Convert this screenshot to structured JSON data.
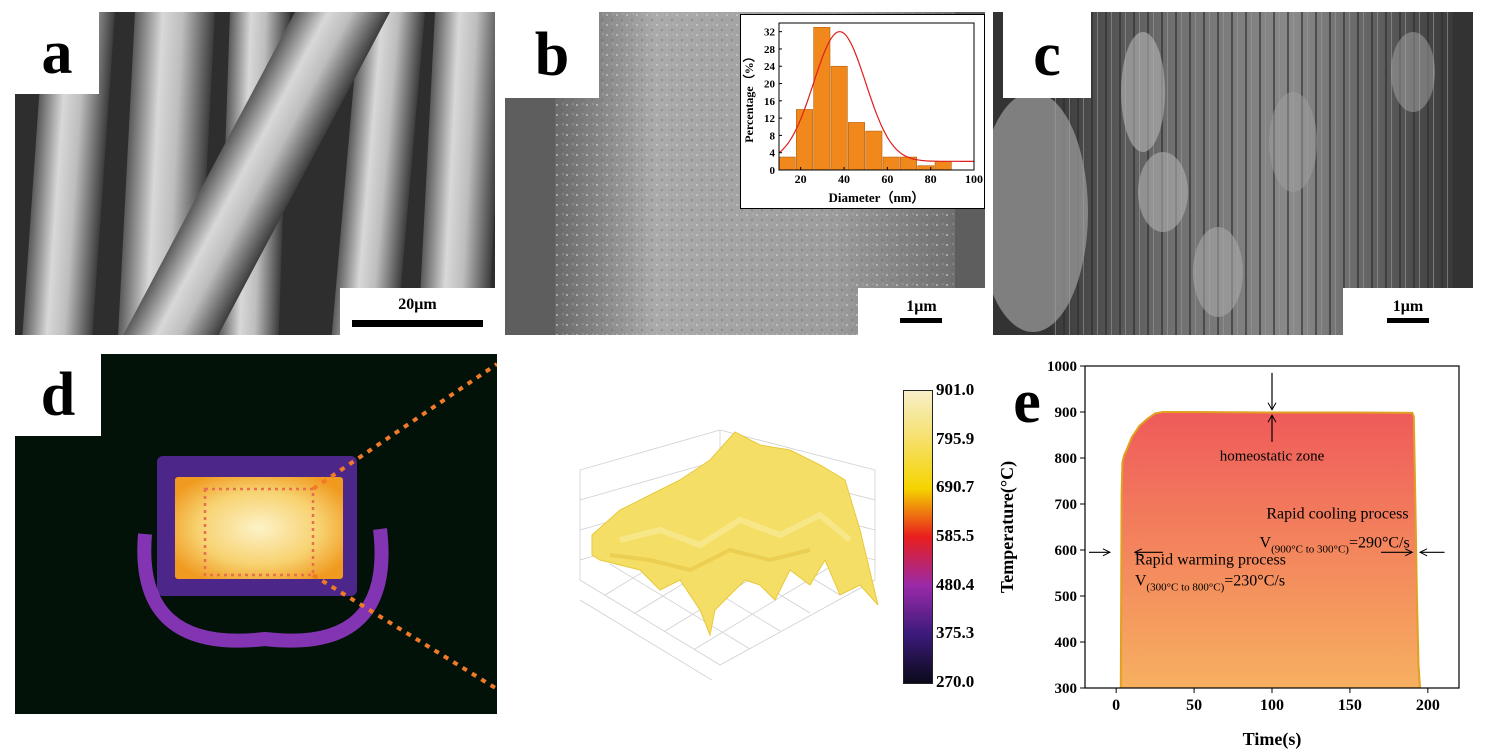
{
  "panels": {
    "a": {
      "label": "a",
      "scale": "20μm"
    },
    "b": {
      "label": "b",
      "scale": "1μm"
    },
    "c": {
      "label": "c",
      "scale": "1μm"
    },
    "d": {
      "label": "d"
    },
    "e": {
      "label": "e"
    }
  },
  "colorbar": {
    "ticks": [
      "901.0",
      "795.9",
      "690.7",
      "585.5",
      "480.4",
      "375.3",
      "270.0"
    ],
    "colors": [
      "#f7efc8",
      "#f6e06a",
      "#f5d400",
      "#e81e1e",
      "#9a2aa8",
      "#3b1a7a",
      "#0a0a1a"
    ]
  },
  "annotations": {
    "homeostatic": "homeostatic zone",
    "cooling_title": "Rapid cooling process",
    "cooling_v": "V",
    "cooling_sub": "(900°C to 300°C)",
    "cooling_val": "=290°C/s",
    "warming_title": "Rapid warming process",
    "warming_v": "V",
    "warming_sub": "(300°C to 800°C)",
    "warming_val": "=230°C/s"
  },
  "chart_data": [
    {
      "type": "bar",
      "xlabel": "Diameter（nm）",
      "ylabel": "Percentage（%）",
      "xlim": [
        10,
        100
      ],
      "ylim": [
        0,
        34
      ],
      "xticks": [
        20,
        40,
        60,
        80,
        100
      ],
      "yticks": [
        0,
        4,
        8,
        12,
        16,
        20,
        24,
        28,
        32
      ],
      "bar_width": 8,
      "x": [
        14,
        22,
        30,
        38,
        46,
        54,
        62,
        70,
        78,
        86,
        94
      ],
      "values": [
        3,
        14,
        33,
        24,
        11,
        9,
        3,
        3,
        1,
        2,
        0
      ],
      "fit_curve": {
        "type": "gaussian",
        "center": 38,
        "peak": 30,
        "sigma": 12,
        "offset": 2,
        "color": "#e11d1d"
      },
      "bar_color": "#f0881c"
    },
    {
      "type": "area",
      "xlabel": "Time(s)",
      "ylabel": "Temperature(°C)",
      "xlim": [
        -20,
        220
      ],
      "ylim": [
        300,
        1000
      ],
      "xticks": [
        0,
        50,
        100,
        150,
        200
      ],
      "yticks": [
        300,
        400,
        500,
        600,
        700,
        800,
        900,
        1000
      ],
      "x": [
        3,
        3.5,
        4,
        5,
        7,
        10,
        15,
        20,
        25,
        30,
        50,
        100,
        150,
        190,
        191,
        192,
        193,
        194,
        195
      ],
      "values": [
        300,
        720,
        790,
        805,
        820,
        845,
        870,
        885,
        897,
        900,
        900,
        899,
        899,
        898,
        890,
        700,
        500,
        350,
        300
      ],
      "line_color": "#e0a020",
      "fill_top": "#ef5a5a",
      "fill_bottom": "#f7b060"
    }
  ]
}
